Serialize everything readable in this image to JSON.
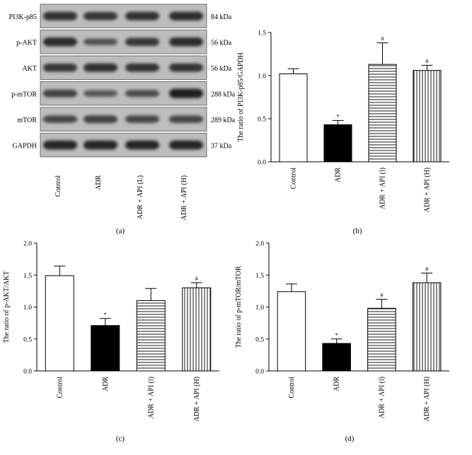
{
  "western_blot": {
    "panel_label": "(a)",
    "rows": [
      {
        "protein": "PI3K-p85",
        "mw": "84 kDa",
        "intensity": [
          0.75,
          0.7,
          0.75,
          0.78
        ]
      },
      {
        "protein": "p-AKT",
        "mw": "56 kDa",
        "intensity": [
          0.8,
          0.45,
          0.7,
          0.8
        ]
      },
      {
        "protein": "AKT",
        "mw": "56 kDa",
        "intensity": [
          0.7,
          0.75,
          0.72,
          0.72
        ]
      },
      {
        "protein": "p-mTOR",
        "mw": "288 kDa",
        "intensity": [
          0.6,
          0.4,
          0.5,
          0.9
        ]
      },
      {
        "protein": "mTOR",
        "mw": "289 kDa",
        "intensity": [
          0.55,
          0.6,
          0.55,
          0.55
        ]
      },
      {
        "protein": "GAPDH",
        "mw": "37 kDa",
        "intensity": [
          0.85,
          0.85,
          0.85,
          0.85
        ]
      }
    ],
    "lanes": [
      "Control",
      "ADR",
      "ADR + API (L)",
      "ADR + API (H)"
    ]
  },
  "chart_data": [
    {
      "panel_label": "(b)",
      "type": "bar",
      "categories": [
        "Control",
        "ADR",
        "ADR + API (l)",
        "ADR + API (H)"
      ],
      "values": [
        1.02,
        0.43,
        1.13,
        1.06
      ],
      "errors": [
        0.06,
        0.05,
        0.25,
        0.06
      ],
      "annotations": [
        "",
        "*",
        "#",
        "#"
      ],
      "patterns": [
        "white",
        "black",
        "horizontal",
        "vertical"
      ],
      "ylabel": "The ratio of PI3K-p85/GAPDH",
      "xlabel": "",
      "ylim": [
        0,
        1.5
      ],
      "yticks": [
        "0.0",
        "0.5",
        "1.0",
        "1.5"
      ],
      "ytick_values": [
        0,
        0.5,
        1.0,
        1.5
      ]
    },
    {
      "panel_label": "(c)",
      "type": "bar",
      "categories": [
        "Control",
        "ADR",
        "ADR + API (l)",
        "ADR + API (H)"
      ],
      "values": [
        1.49,
        0.71,
        1.1,
        1.3
      ],
      "errors": [
        0.15,
        0.11,
        0.19,
        0.08
      ],
      "annotations": [
        "",
        "*",
        "",
        "#"
      ],
      "patterns": [
        "white",
        "black",
        "horizontal",
        "vertical"
      ],
      "ylabel": "The ratio of p-AKT/AKT",
      "xlabel": "",
      "ylim": [
        0,
        2.0
      ],
      "yticks": [
        "0.0",
        "0.5",
        "1.0",
        "1.5",
        "2.0"
      ],
      "ytick_values": [
        0,
        0.5,
        1.0,
        1.5,
        2.0
      ]
    },
    {
      "panel_label": "(d)",
      "type": "bar",
      "categories": [
        "Control",
        "ADR",
        "ADR + API (l)",
        "ADR + API (H)"
      ],
      "values": [
        1.24,
        0.43,
        0.98,
        1.38
      ],
      "errors": [
        0.12,
        0.07,
        0.14,
        0.15
      ],
      "annotations": [
        "",
        "*",
        "#",
        "#"
      ],
      "patterns": [
        "white",
        "black",
        "horizontal",
        "vertical"
      ],
      "ylabel": "The ratio of p-mTOR/mTOR",
      "xlabel": "",
      "ylim": [
        0,
        2.0
      ],
      "yticks": [
        "0.0",
        "0.5",
        "1.0",
        "1.5",
        "2.0"
      ],
      "ytick_values": [
        0,
        0.5,
        1.0,
        1.5,
        2.0
      ]
    }
  ],
  "colors": {
    "axis": "#000000",
    "bar_fill_dark": "#000000",
    "bar_fill_light": "#ffffff",
    "band": "#141414",
    "blot_bg": "#bdbdbd"
  }
}
